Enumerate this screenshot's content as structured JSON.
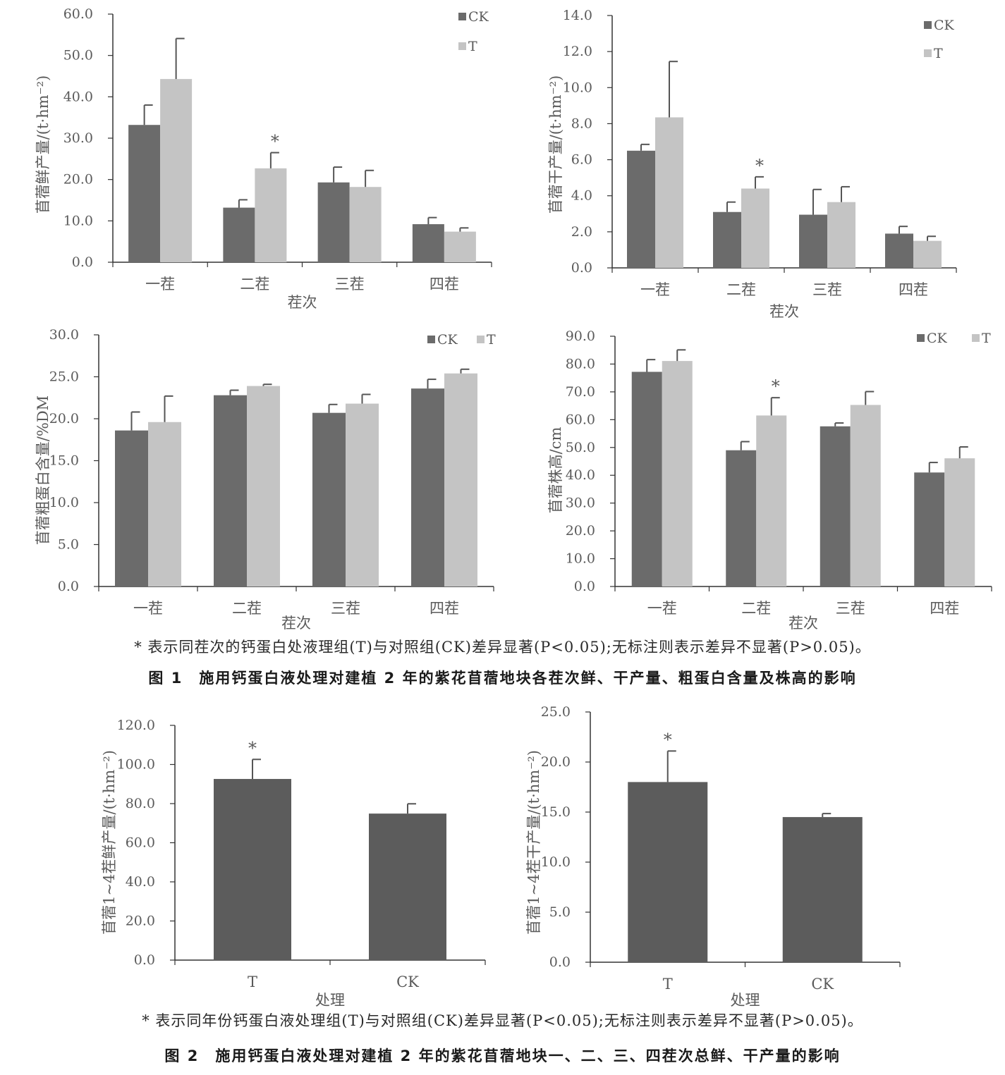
{
  "figure1": {
    "note": "* 表示同茬次的钙蛋白处液理组(T)与对照组(CK)差异显著(P<0.05);无标注则表示差异不显著(P>0.05)。",
    "caption": "图 1　施用钙蛋白液处理对建植 2 年的紫花苜蓿地块各茬次鲜、干产量、粗蛋白含量及株高的影响"
  },
  "figure2": {
    "note": "* 表示同年份钙蛋白液处理组(T)与对照组(CK)差异显著(P<0.05);无标注则表示差异不显著(P>0.05)。",
    "caption": "图 2　施用钙蛋白液处理对建植 2 年的紫花苜蓿地块一、二、三、四茬次总鲜、干产量的影响"
  },
  "colors": {
    "CK": "#6b6b6b",
    "T": "#c4c4c4",
    "single": "#5c5c5c",
    "axis": "#333333"
  },
  "chart_data": [
    {
      "id": "fresh-yield",
      "type": "bar",
      "title": "",
      "xlabel": "茬次",
      "ylabel": "苜蓿鲜产量/(t·hm⁻²)",
      "categories": [
        "一茬",
        "二茬",
        "三茬",
        "四茬"
      ],
      "ylim": [
        0,
        60
      ],
      "yticks": [
        "0.0",
        "10.0",
        "20.0",
        "30.0",
        "40.0",
        "50.0",
        "60.0"
      ],
      "legend_position": "top-right, stacked",
      "series": [
        {
          "name": "CK",
          "values": [
            33.2,
            13.2,
            19.3,
            9.2
          ],
          "errors": [
            4.8,
            1.9,
            3.7,
            1.6
          ]
        },
        {
          "name": "T",
          "values": [
            44.3,
            22.7,
            18.2,
            7.4
          ],
          "errors": [
            9.8,
            3.8,
            4.0,
            0.9
          ]
        }
      ],
      "significance": [
        1
      ]
    },
    {
      "id": "dry-yield",
      "type": "bar",
      "title": "",
      "xlabel": "茬次",
      "ylabel": "苜蓿干产量/(t·hm⁻²)",
      "categories": [
        "一茬",
        "二茬",
        "三茬",
        "四茬"
      ],
      "ylim": [
        0,
        14
      ],
      "yticks": [
        "0.0",
        "2.0",
        "4.0",
        "6.0",
        "8.0",
        "10.0",
        "12.0",
        "14.0"
      ],
      "legend_position": "top-right, stacked",
      "series": [
        {
          "name": "CK",
          "values": [
            6.5,
            3.1,
            2.95,
            1.9
          ],
          "errors": [
            0.35,
            0.55,
            1.4,
            0.4
          ]
        },
        {
          "name": "T",
          "values": [
            8.35,
            4.4,
            3.65,
            1.5
          ],
          "errors": [
            3.1,
            0.65,
            0.85,
            0.25
          ]
        }
      ],
      "significance": [
        1
      ]
    },
    {
      "id": "crude-protein",
      "type": "bar",
      "title": "",
      "xlabel": "茬次",
      "ylabel": "苜蓿粗蛋白含量/%DM",
      "categories": [
        "一茬",
        "二茬",
        "三茬",
        "四茬"
      ],
      "ylim": [
        0,
        30
      ],
      "yticks": [
        "0.0",
        "5.0",
        "10.0",
        "15.0",
        "20.0",
        "25.0",
        "30.0"
      ],
      "legend_position": "top-right, inline",
      "series": [
        {
          "name": "CK",
          "values": [
            18.6,
            22.8,
            20.7,
            23.6
          ],
          "errors": [
            2.2,
            0.6,
            1.0,
            1.1
          ]
        },
        {
          "name": "T",
          "values": [
            19.6,
            23.9,
            21.8,
            25.4
          ],
          "errors": [
            3.1,
            0.2,
            1.1,
            0.5
          ]
        }
      ],
      "significance": []
    },
    {
      "id": "plant-height",
      "type": "bar",
      "title": "",
      "xlabel": "茬次",
      "ylabel": "苜蓿株高/cm",
      "categories": [
        "一茬",
        "二茬",
        "三茬",
        "四茬"
      ],
      "ylim": [
        0,
        90
      ],
      "yticks": [
        "0.0",
        "10.0",
        "20.0",
        "30.0",
        "40.0",
        "50.0",
        "60.0",
        "70.0",
        "80.0",
        "90.0"
      ],
      "legend_position": "top-right, inline",
      "series": [
        {
          "name": "CK",
          "values": [
            77.2,
            49.0,
            57.6,
            41.0
          ],
          "errors": [
            4.4,
            3.1,
            1.2,
            3.6
          ]
        },
        {
          "name": "T",
          "values": [
            81.1,
            61.5,
            65.3,
            46.1
          ],
          "errors": [
            4.0,
            6.4,
            4.8,
            4.1
          ]
        }
      ],
      "significance": [
        1
      ]
    },
    {
      "id": "total-fresh-yield",
      "type": "bar",
      "title": "",
      "xlabel": "处理",
      "ylabel": "苜蓿1~4茬鲜产量/(t·hm⁻²)",
      "categories": [
        "T",
        "CK"
      ],
      "ylim": [
        0,
        120
      ],
      "yticks": [
        "0.0",
        "20.0",
        "40.0",
        "60.0",
        "80.0",
        "100.0",
        "120.0"
      ],
      "series": [
        {
          "name": "",
          "values": [
            92.6,
            74.9
          ],
          "errors": [
            10.0,
            5.0
          ]
        }
      ],
      "significance": [
        0
      ]
    },
    {
      "id": "total-dry-yield",
      "type": "bar",
      "title": "",
      "xlabel": "处理",
      "ylabel": "苜蓿1~4茬干产量/(t·hm⁻²)",
      "categories": [
        "T",
        "CK"
      ],
      "ylim": [
        0,
        25
      ],
      "yticks": [
        "0.0",
        "5.0",
        "10.0",
        "15.0",
        "20.0",
        "25.0"
      ],
      "series": [
        {
          "name": "",
          "values": [
            18.0,
            14.5
          ],
          "errors": [
            3.1,
            0.35
          ]
        }
      ],
      "significance": [
        0
      ]
    }
  ]
}
